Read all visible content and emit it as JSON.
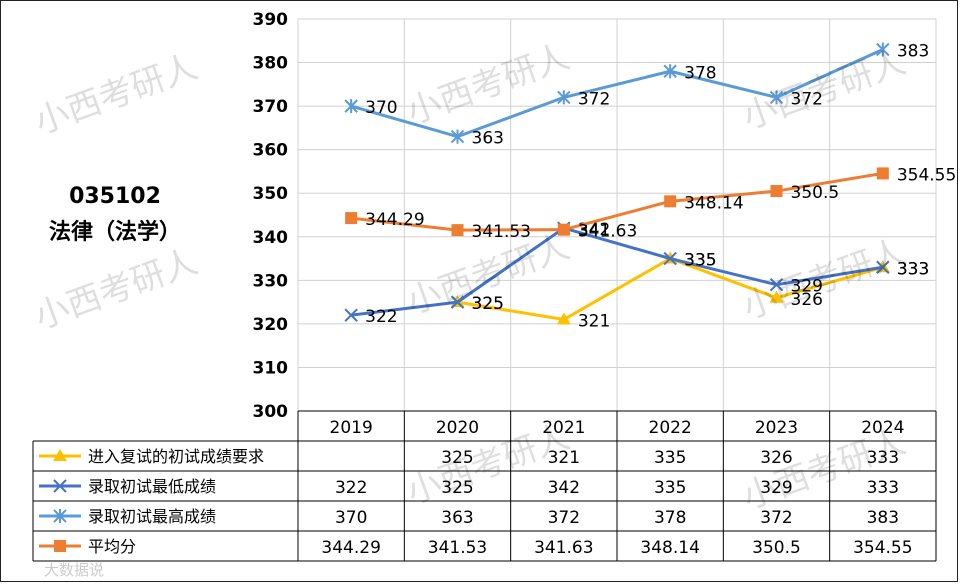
{
  "chart_data": {
    "type": "line",
    "title_code": "035102",
    "title_name": "法律（法学）",
    "categories": [
      "2019",
      "2020",
      "2021",
      "2022",
      "2023",
      "2024"
    ],
    "ylim": [
      300,
      390
    ],
    "yticks": [
      300,
      310,
      320,
      330,
      340,
      350,
      360,
      370,
      380,
      390
    ],
    "grid": true,
    "series": [
      {
        "name": "进入复试的初试成绩要求",
        "marker": "triangle",
        "color": "#ffc000",
        "values": [
          null,
          325,
          321,
          335,
          326,
          333
        ],
        "labels": [
          "",
          "325",
          "321",
          "335",
          "326",
          "333"
        ]
      },
      {
        "name": "录取初试最低成绩",
        "marker": "x",
        "color": "#4472c4",
        "values": [
          322,
          325,
          342,
          335,
          329,
          333
        ],
        "labels": [
          "322",
          "325",
          "342",
          "335",
          "329",
          "333"
        ]
      },
      {
        "name": "录取初试最高成绩",
        "marker": "asterisk",
        "color": "#5b9bd5",
        "values": [
          370,
          363,
          372,
          378,
          372,
          383
        ],
        "labels": [
          "370",
          "363",
          "372",
          "378",
          "372",
          "383"
        ]
      },
      {
        "name": "平均分",
        "marker": "square",
        "color": "#ed7d31",
        "values": [
          344.29,
          341.53,
          341.63,
          348.14,
          350.5,
          354.55
        ],
        "labels": [
          "344.29",
          "341.53",
          "341.63",
          "348.14",
          "350.5",
          "354.55"
        ]
      }
    ],
    "watermark": "小西考研人",
    "footer_mark": "大数据说"
  }
}
